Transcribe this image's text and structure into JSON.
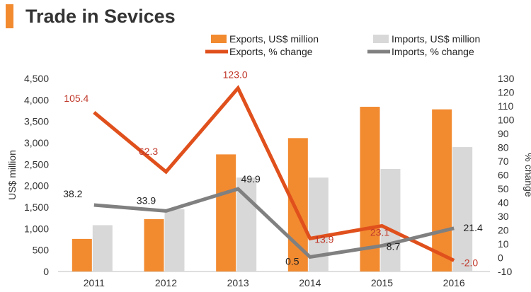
{
  "header": {
    "title": "Trade in Sevices"
  },
  "colors": {
    "accent": "#F28A30",
    "exports_bar": "#F28A30",
    "imports_bar": "#D8D8D8",
    "exports_line": "#E0501C",
    "imports_line": "#808080",
    "exports_label": "#C0392B",
    "imports_label": "#222222"
  },
  "chart_data": {
    "type": "bar",
    "title": "Trade in Sevices",
    "categories": [
      "2011",
      "2012",
      "2013",
      "2014",
      "2015",
      "2016"
    ],
    "series": [
      {
        "name": "Exports, US$ million",
        "kind": "bar",
        "axis": "left",
        "values": [
          760,
          1220,
          2730,
          3110,
          3840,
          3780
        ]
      },
      {
        "name": "Imports, US$ million",
        "kind": "bar",
        "axis": "left",
        "values": [
          1080,
          1450,
          2190,
          2190,
          2390,
          2900
        ]
      },
      {
        "name": "Exports, % change",
        "kind": "line",
        "axis": "right",
        "values": [
          105.4,
          62.3,
          123.0,
          13.9,
          23.1,
          -2.0
        ],
        "labels": [
          "105.4",
          "62.3",
          "123.0",
          "13.9",
          "23.1",
          "-2.0"
        ]
      },
      {
        "name": "Imports, % change",
        "kind": "line",
        "axis": "right",
        "values": [
          38.2,
          33.9,
          49.9,
          0.5,
          8.7,
          21.4
        ],
        "labels": [
          "38.2",
          "33.9",
          "49.9",
          "0.5",
          "8.7",
          "21.4"
        ]
      }
    ],
    "ylabel": "US$ million",
    "y2label": "% change",
    "ylim": [
      0,
      4500
    ],
    "y2lim": [
      -10,
      130
    ],
    "yticks": [
      "0",
      "500",
      "1,000",
      "1,500",
      "2,000",
      "2,500",
      "3,000",
      "3,500",
      "4,000",
      "4,500"
    ],
    "y2ticks": [
      "-10",
      "0",
      "10",
      "20",
      "30",
      "40",
      "50",
      "60",
      "70",
      "80",
      "90",
      "100",
      "110",
      "120",
      "130"
    ],
    "legend_position": "top-right"
  }
}
